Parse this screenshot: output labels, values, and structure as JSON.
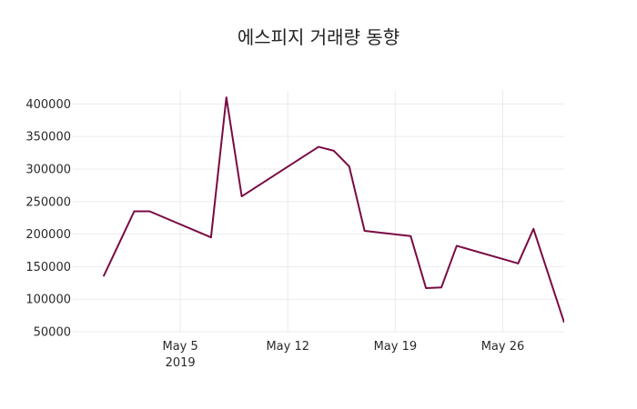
{
  "chart_data": {
    "type": "line",
    "title": "에스피지 거래량 동향",
    "xlabel": "",
    "ylabel": "",
    "grid": true,
    "legend": "none",
    "x_axis": {
      "type": "date",
      "range": [
        "2019-04-28",
        "2019-05-30"
      ],
      "ticks": [
        {
          "date": "2019-05-05",
          "label": "May 5",
          "sublabel": "2019"
        },
        {
          "date": "2019-05-12",
          "label": "May 12",
          "sublabel": ""
        },
        {
          "date": "2019-05-19",
          "label": "May 19",
          "sublabel": ""
        },
        {
          "date": "2019-05-26",
          "label": "May 26",
          "sublabel": ""
        }
      ]
    },
    "y_axis": {
      "range": [
        50000,
        420000
      ],
      "ticks": [
        50000,
        100000,
        150000,
        200000,
        250000,
        300000,
        350000,
        400000
      ]
    },
    "series": [
      {
        "name": "",
        "color": "#7a0a43",
        "points": [
          {
            "x": "2019-04-30",
            "y": 135000
          },
          {
            "x": "2019-05-02",
            "y": 235000
          },
          {
            "x": "2019-05-03",
            "y": 235000
          },
          {
            "x": "2019-05-07",
            "y": 195000
          },
          {
            "x": "2019-05-08",
            "y": 410000
          },
          {
            "x": "2019-05-09",
            "y": 258000
          },
          {
            "x": "2019-05-14",
            "y": 334000
          },
          {
            "x": "2019-05-15",
            "y": 328000
          },
          {
            "x": "2019-05-16",
            "y": 304000
          },
          {
            "x": "2019-05-17",
            "y": 205000
          },
          {
            "x": "2019-05-20",
            "y": 197000
          },
          {
            "x": "2019-05-21",
            "y": 117000
          },
          {
            "x": "2019-05-22",
            "y": 118000
          },
          {
            "x": "2019-05-23",
            "y": 182000
          },
          {
            "x": "2019-05-27",
            "y": 155000
          },
          {
            "x": "2019-05-28",
            "y": 208000
          },
          {
            "x": "2019-05-30",
            "y": 64000
          }
        ]
      }
    ]
  }
}
